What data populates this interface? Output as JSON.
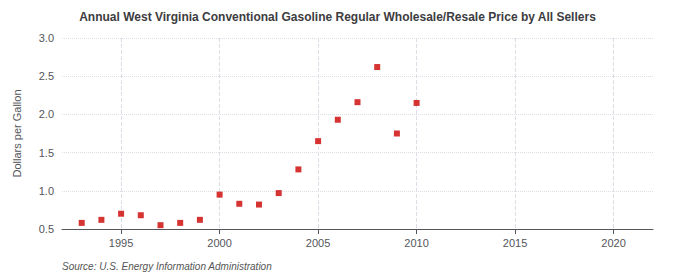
{
  "chart_data": {
    "type": "scatter",
    "title": "Annual West Virginia Conventional Gasoline Regular Wholesale/Resale Price by All Sellers",
    "ylabel": "Dollars per Gallon",
    "source": "Source: U.S. Energy Information Administration",
    "x": [
      1993,
      1994,
      1995,
      1996,
      1997,
      1998,
      1999,
      2000,
      2001,
      2002,
      2003,
      2004,
      2005,
      2006,
      2007,
      2008,
      2009,
      2010
    ],
    "values": [
      0.58,
      0.62,
      0.7,
      0.68,
      0.55,
      0.58,
      0.62,
      0.95,
      0.83,
      0.82,
      0.97,
      1.28,
      1.65,
      1.93,
      2.16,
      2.62,
      1.75,
      2.15
    ],
    "color": "#cc0000",
    "marker": "square",
    "xlim": [
      1992,
      2022
    ],
    "ylim": [
      0.5,
      3.0
    ],
    "xticks": [
      1995,
      2000,
      2005,
      2010,
      2015,
      2020
    ],
    "yticks": [
      0.5,
      {
        "value": 1.0,
        "label": "1.0"
      },
      1.5,
      {
        "value": 2.0,
        "label": "2.0"
      },
      2.5,
      {
        "value": 3.0,
        "label": "3.0"
      }
    ],
    "grid": true
  }
}
